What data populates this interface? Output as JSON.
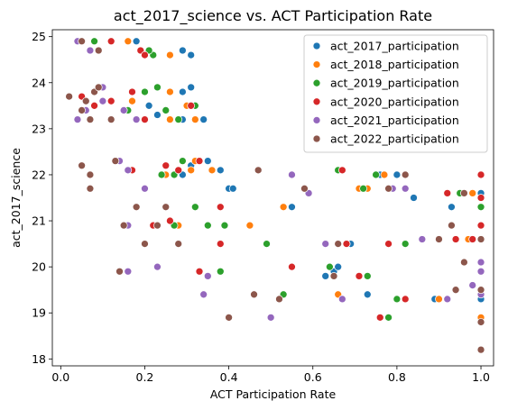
{
  "chart_data": {
    "type": "scatter",
    "title": "act_2017_science vs. ACT Participation Rate",
    "xlabel": "ACT Participation Rate",
    "ylabel": "act_2017_science",
    "xlim": [
      -0.02,
      1.03
    ],
    "ylim": [
      17.85,
      25.15
    ],
    "xticks": [
      0.0,
      0.2,
      0.4,
      0.6,
      0.8,
      1.0
    ],
    "xtick_labels": [
      "0.0",
      "0.2",
      "0.4",
      "0.6",
      "0.8",
      "1.0"
    ],
    "yticks": [
      18,
      19,
      20,
      21,
      22,
      23,
      24,
      25
    ],
    "ytick_labels": [
      "18",
      "19",
      "20",
      "21",
      "22",
      "23",
      "24",
      "25"
    ],
    "grid": false,
    "legend_position": "top-right",
    "series": [
      {
        "name": "act_2017_participation",
        "color": "#1f77b4",
        "points": [
          [
            0.18,
            24.9
          ],
          [
            0.29,
            24.7
          ],
          [
            0.31,
            24.6
          ],
          [
            0.31,
            23.9
          ],
          [
            0.29,
            23.8
          ],
          [
            0.21,
            23.5
          ],
          [
            0.23,
            23.3
          ],
          [
            0.29,
            23.2
          ],
          [
            0.34,
            23.2
          ],
          [
            0.35,
            22.3
          ],
          [
            0.31,
            22.2
          ],
          [
            0.29,
            22.0
          ],
          [
            0.38,
            22.1
          ],
          [
            0.4,
            21.7
          ],
          [
            0.41,
            21.7
          ],
          [
            0.84,
            21.5
          ],
          [
            0.55,
            21.3
          ],
          [
            0.66,
            20.5
          ],
          [
            0.73,
            19.4
          ],
          [
            0.65,
            19.9
          ],
          [
            0.66,
            20.0
          ],
          [
            0.63,
            19.8
          ],
          [
            0.69,
            20.5
          ],
          [
            0.89,
            19.3
          ],
          [
            1.0,
            21.6
          ],
          [
            0.93,
            21.3
          ],
          [
            1.0,
            19.3
          ],
          [
            1.0,
            19.5
          ],
          [
            0.8,
            22.0
          ],
          [
            0.76,
            22.0
          ]
        ]
      },
      {
        "name": "act_2018_participation",
        "color": "#ff7f0e",
        "points": [
          [
            0.16,
            24.9
          ],
          [
            0.26,
            24.6
          ],
          [
            0.17,
            23.6
          ],
          [
            0.26,
            23.8
          ],
          [
            0.3,
            23.5
          ],
          [
            0.32,
            23.2
          ],
          [
            0.26,
            23.2
          ],
          [
            0.32,
            22.3
          ],
          [
            0.36,
            22.1
          ],
          [
            0.31,
            22.1
          ],
          [
            0.25,
            22.0
          ],
          [
            0.45,
            20.9
          ],
          [
            0.53,
            21.3
          ],
          [
            0.66,
            20.5
          ],
          [
            0.71,
            21.7
          ],
          [
            0.73,
            21.7
          ],
          [
            0.77,
            22.0
          ],
          [
            0.97,
            20.6
          ],
          [
            0.98,
            21.6
          ],
          [
            0.9,
            19.3
          ],
          [
            1.0,
            18.9
          ],
          [
            0.66,
            19.4
          ],
          [
            0.28,
            20.9
          ],
          [
            0.98,
            20.6
          ]
        ]
      },
      {
        "name": "act_2019_participation",
        "color": "#2ca02c",
        "points": [
          [
            0.08,
            24.9
          ],
          [
            0.22,
            24.6
          ],
          [
            0.21,
            24.7
          ],
          [
            0.2,
            23.8
          ],
          [
            0.23,
            23.9
          ],
          [
            0.16,
            23.4
          ],
          [
            0.25,
            23.4
          ],
          [
            0.28,
            23.2
          ],
          [
            0.32,
            23.5
          ],
          [
            0.29,
            22.3
          ],
          [
            0.27,
            22.0
          ],
          [
            0.24,
            22.0
          ],
          [
            0.35,
            20.9
          ],
          [
            0.32,
            21.3
          ],
          [
            0.39,
            20.9
          ],
          [
            0.38,
            19.9
          ],
          [
            0.49,
            20.5
          ],
          [
            0.53,
            19.4
          ],
          [
            0.64,
            20.0
          ],
          [
            0.66,
            22.1
          ],
          [
            0.73,
            19.8
          ],
          [
            0.75,
            22.0
          ],
          [
            0.82,
            20.5
          ],
          [
            0.78,
            18.9
          ],
          [
            0.8,
            19.3
          ],
          [
            0.95,
            21.6
          ],
          [
            1.0,
            21.3
          ],
          [
            0.27,
            20.9
          ],
          [
            0.72,
            21.7
          ]
        ]
      },
      {
        "name": "act_2020_participation",
        "color": "#d62728",
        "points": [
          [
            0.12,
            24.9
          ],
          [
            0.19,
            24.7
          ],
          [
            0.2,
            24.6
          ],
          [
            0.17,
            23.8
          ],
          [
            0.09,
            23.9
          ],
          [
            0.05,
            23.7
          ],
          [
            0.12,
            23.6
          ],
          [
            0.08,
            23.5
          ],
          [
            0.2,
            23.2
          ],
          [
            0.31,
            23.5
          ],
          [
            0.25,
            22.2
          ],
          [
            0.33,
            22.3
          ],
          [
            0.17,
            22.1
          ],
          [
            0.28,
            22.1
          ],
          [
            0.26,
            21.0
          ],
          [
            0.22,
            20.9
          ],
          [
            0.38,
            20.5
          ],
          [
            0.33,
            19.9
          ],
          [
            0.38,
            21.3
          ],
          [
            0.55,
            20.0
          ],
          [
            0.67,
            22.1
          ],
          [
            0.68,
            20.5
          ],
          [
            0.71,
            19.8
          ],
          [
            0.76,
            18.9
          ],
          [
            0.78,
            20.5
          ],
          [
            0.82,
            19.3
          ],
          [
            0.92,
            21.6
          ],
          [
            0.94,
            20.6
          ],
          [
            1.0,
            21.5
          ],
          [
            1.0,
            22.0
          ],
          [
            1.0,
            20.9
          ],
          [
            1.0,
            19.5
          ],
          [
            0.98,
            20.6
          ],
          [
            0.68,
            20.5
          ]
        ]
      },
      {
        "name": "act_2021_participation",
        "color": "#9467bd",
        "points": [
          [
            0.04,
            24.9
          ],
          [
            0.07,
            24.7
          ],
          [
            0.1,
            23.9
          ],
          [
            0.06,
            23.4
          ],
          [
            0.04,
            23.2
          ],
          [
            0.1,
            23.6
          ],
          [
            0.18,
            23.2
          ],
          [
            0.15,
            23.4
          ],
          [
            0.14,
            22.3
          ],
          [
            0.16,
            22.1
          ],
          [
            0.2,
            21.7
          ],
          [
            0.18,
            21.3
          ],
          [
            0.16,
            20.9
          ],
          [
            0.23,
            20.0
          ],
          [
            0.16,
            19.9
          ],
          [
            0.34,
            19.4
          ],
          [
            0.35,
            19.8
          ],
          [
            0.47,
            22.1
          ],
          [
            0.55,
            22.0
          ],
          [
            0.59,
            21.6
          ],
          [
            0.63,
            20.5
          ],
          [
            0.67,
            19.3
          ],
          [
            0.79,
            21.7
          ],
          [
            0.82,
            21.7
          ],
          [
            0.86,
            20.6
          ],
          [
            0.92,
            19.3
          ],
          [
            0.98,
            19.6
          ],
          [
            1.0,
            20.1
          ],
          [
            1.0,
            19.9
          ],
          [
            0.5,
            18.9
          ],
          [
            0.05,
            22.2
          ],
          [
            1.0,
            19.4
          ]
        ]
      },
      {
        "name": "act_2022_participation",
        "color": "#8c564b",
        "points": [
          [
            0.05,
            24.9
          ],
          [
            0.09,
            24.7
          ],
          [
            0.02,
            23.7
          ],
          [
            0.06,
            23.6
          ],
          [
            0.08,
            23.8
          ],
          [
            0.09,
            23.9
          ],
          [
            0.05,
            23.4
          ],
          [
            0.07,
            23.2
          ],
          [
            0.12,
            23.2
          ],
          [
            0.13,
            22.3
          ],
          [
            0.05,
            22.2
          ],
          [
            0.07,
            22.0
          ],
          [
            0.07,
            21.7
          ],
          [
            0.14,
            19.9
          ],
          [
            0.2,
            20.5
          ],
          [
            0.15,
            20.9
          ],
          [
            0.23,
            20.9
          ],
          [
            0.25,
            21.3
          ],
          [
            0.28,
            20.5
          ],
          [
            0.4,
            18.9
          ],
          [
            0.46,
            19.4
          ],
          [
            0.47,
            22.1
          ],
          [
            0.52,
            19.3
          ],
          [
            0.58,
            21.7
          ],
          [
            0.66,
            20.5
          ],
          [
            0.65,
            19.8
          ],
          [
            0.78,
            21.7
          ],
          [
            0.82,
            22.0
          ],
          [
            0.9,
            20.6
          ],
          [
            0.93,
            20.9
          ],
          [
            0.94,
            19.5
          ],
          [
            0.96,
            21.6
          ],
          [
            0.96,
            20.1
          ],
          [
            1.0,
            18.2
          ],
          [
            1.0,
            18.8
          ],
          [
            1.0,
            20.6
          ],
          [
            1.0,
            19.5
          ],
          [
            0.18,
            21.3
          ]
        ]
      }
    ]
  }
}
